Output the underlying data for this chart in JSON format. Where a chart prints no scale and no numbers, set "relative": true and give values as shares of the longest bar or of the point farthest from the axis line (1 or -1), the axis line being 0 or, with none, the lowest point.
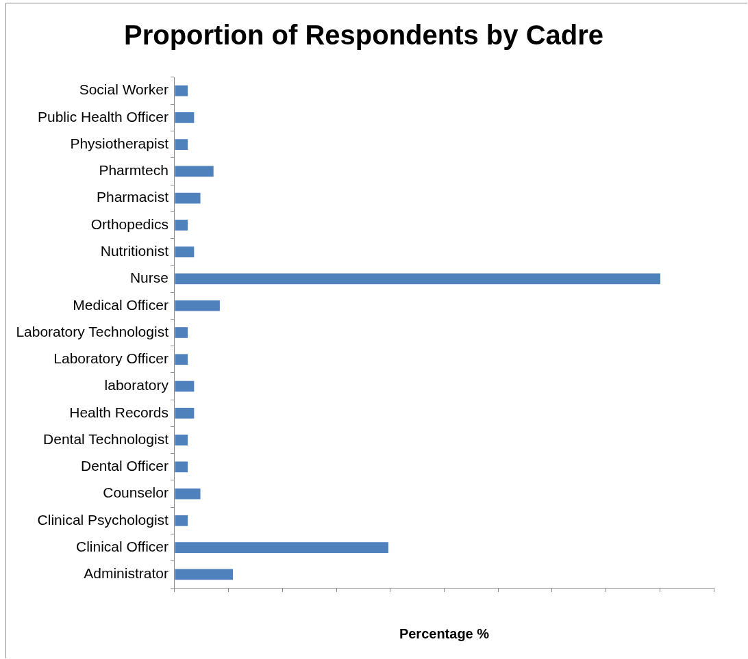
{
  "chart_data": {
    "type": "bar",
    "orientation": "horizontal",
    "relative": true,
    "title": "Proportion of Respondents by Cadre",
    "xlabel": "Percentage %",
    "categories": [
      "Social Worker",
      "Public Health Officer",
      "Physiotherapist",
      "Pharmtech",
      "Pharmacist",
      "Orthopedics",
      "Nutritionist",
      "Nurse",
      "Medical Officer",
      "Laboratory Technologist",
      "Laboratory Officer",
      "laboratory",
      "Health Records",
      "Dental Technologist",
      "Dental Officer",
      "Counselor",
      "Clinical Psychologist",
      "Clinical Officer",
      "Administrator"
    ],
    "values": [
      0.027,
      0.04,
      0.027,
      0.08,
      0.053,
      0.027,
      0.04,
      1,
      0.093,
      0.027,
      0.027,
      0.04,
      0.04,
      0.027,
      0.027,
      0.053,
      0.027,
      0.44,
      0.12
    ],
    "color": "#4f81bd",
    "grid": false,
    "legend": false
  }
}
